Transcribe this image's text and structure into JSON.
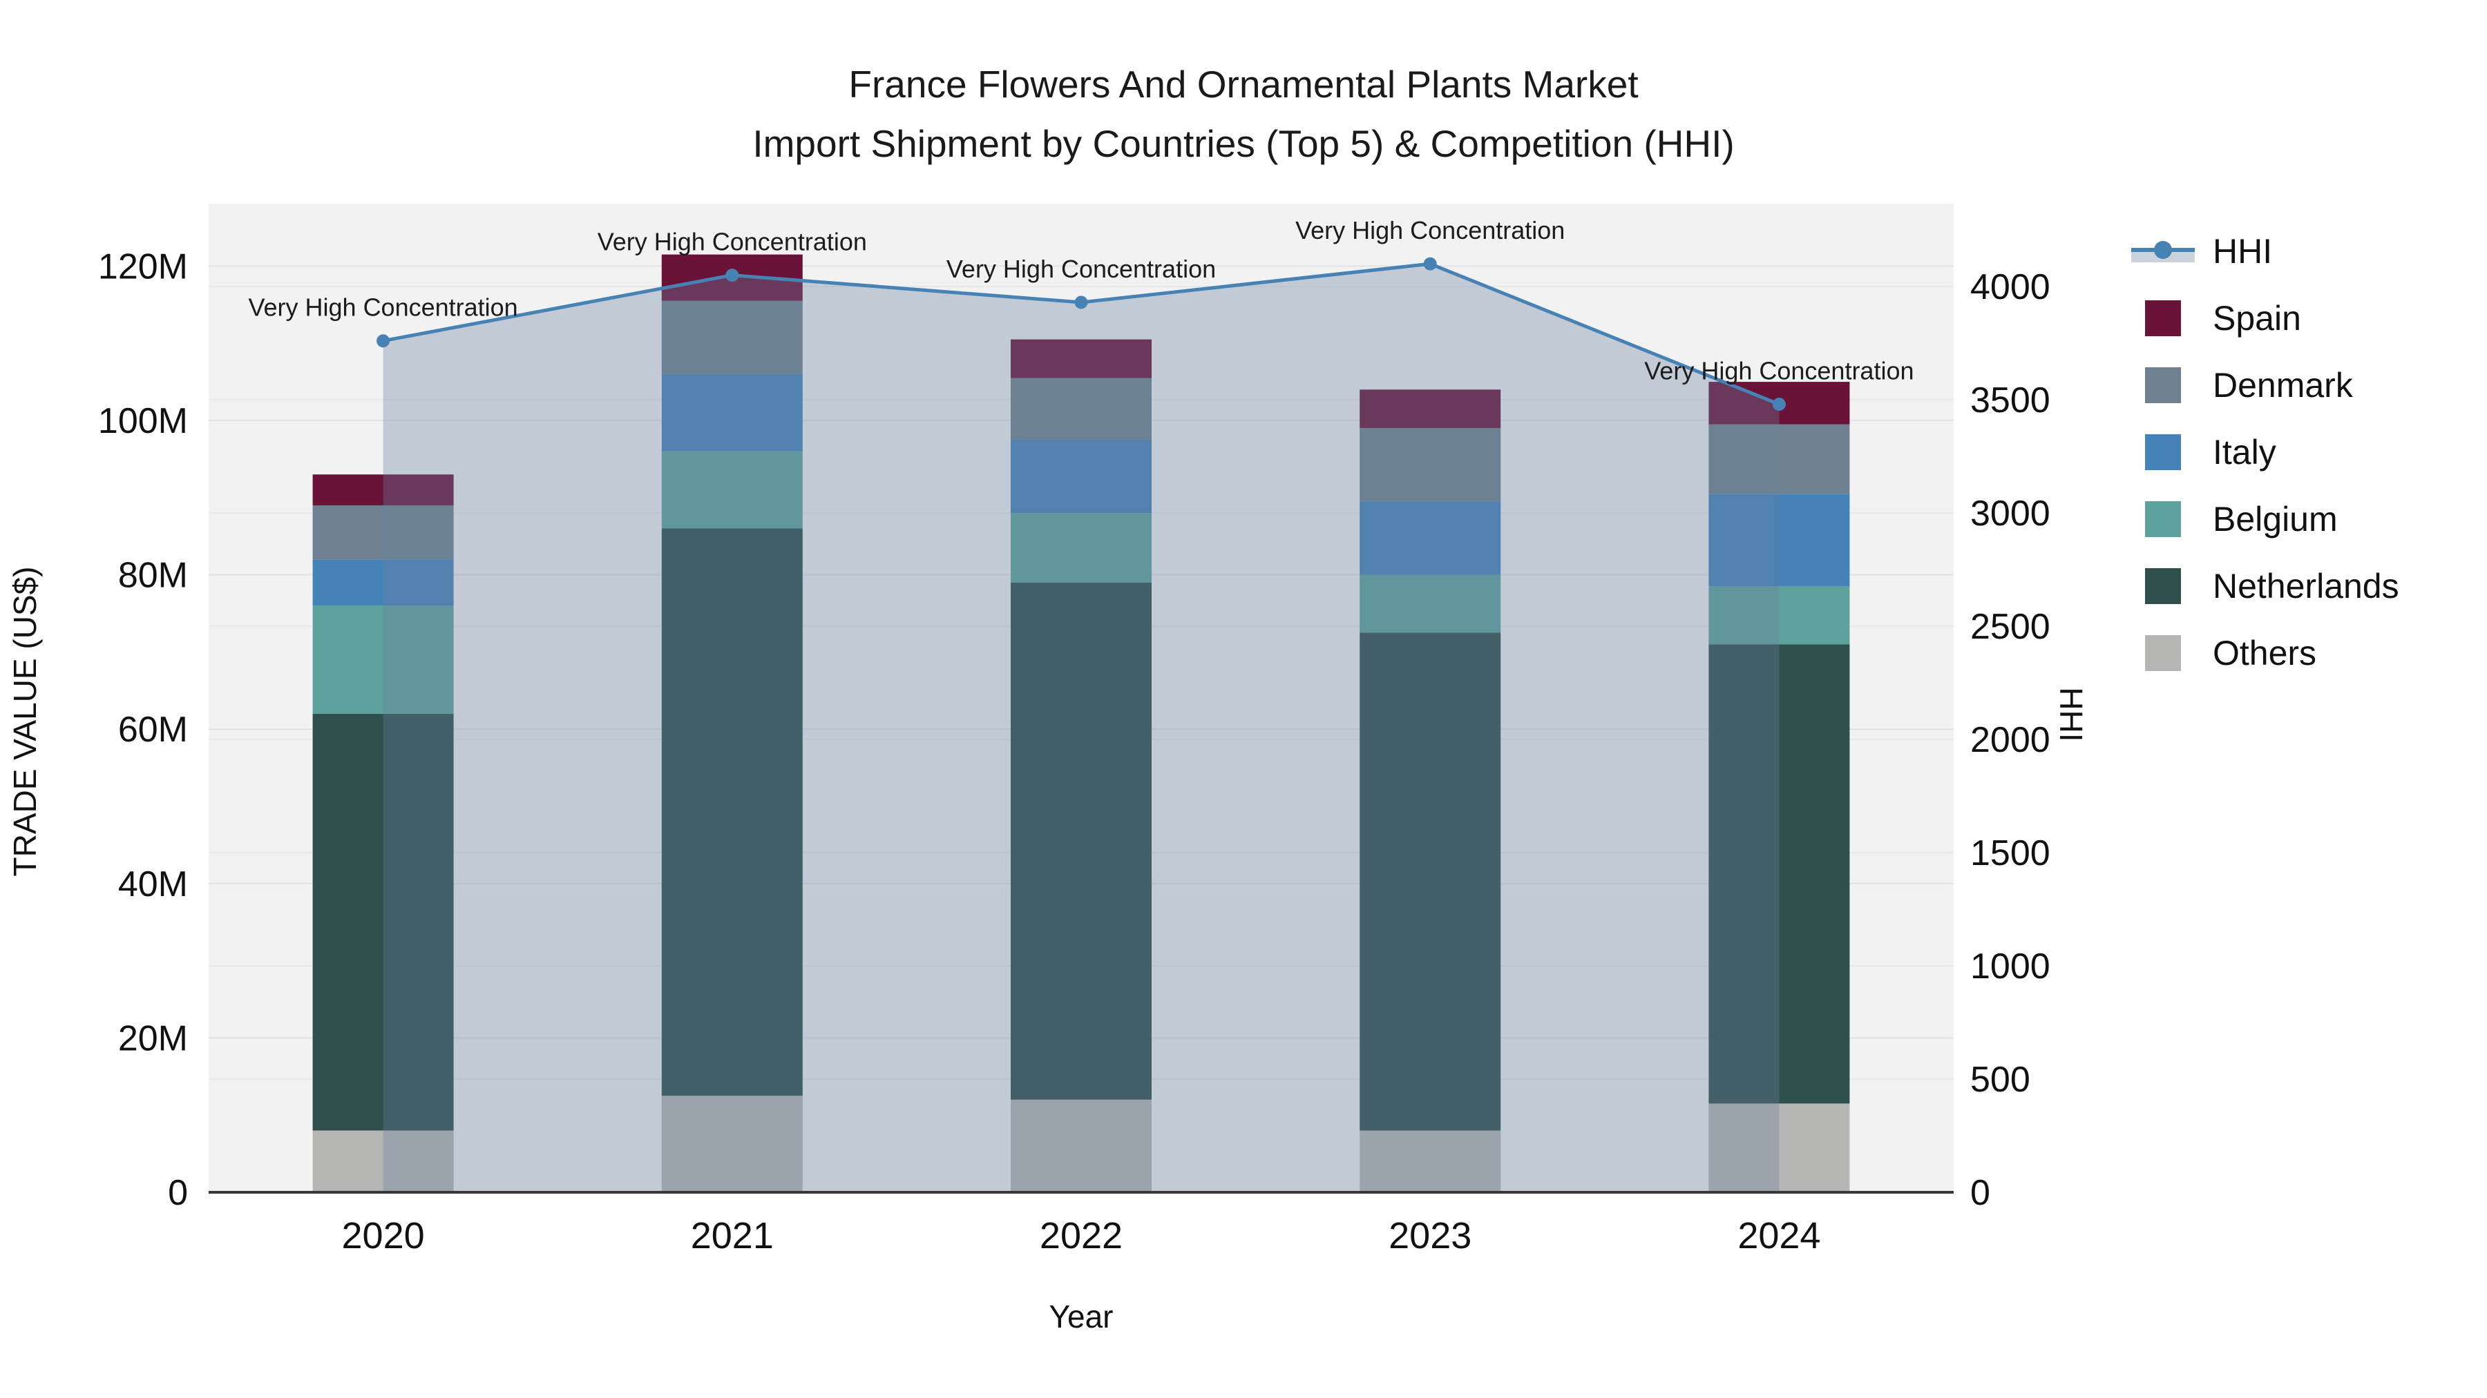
{
  "page": {
    "title_line1": "France Flowers And Ornamental Plants Market",
    "title_line2": "Import Shipment by Countries (Top 5) & Competition (HHI)"
  },
  "axes": {
    "x": {
      "title": "Year",
      "categories": [
        "2020",
        "2021",
        "2022",
        "2023",
        "2024"
      ]
    },
    "left": {
      "title": "TRADE VALUE (US$)",
      "tick_values": [
        0,
        20,
        40,
        60,
        80,
        100,
        120
      ],
      "tick_suffix": "M"
    },
    "right": {
      "title": "HHI",
      "tick_values": [
        0,
        500,
        1000,
        1500,
        2000,
        2500,
        3000,
        3500,
        4000
      ]
    }
  },
  "chart_data": {
    "type": "bar",
    "stacked": true,
    "title": "France Flowers And Ornamental Plants Market Import Shipment by Countries (Top 5) & Competition (HHI)",
    "categories": [
      "2020",
      "2021",
      "2022",
      "2023",
      "2024"
    ],
    "values_unit": "million US$",
    "xlabel": "Year",
    "ylabel_left": "TRADE VALUE (US$)",
    "ylabel_right": "HHI",
    "ylim_left": [
      0,
      128
    ],
    "ylim_right": [
      0,
      4370
    ],
    "grid": true,
    "legend_position": "right",
    "series": [
      {
        "name": "Others",
        "color": "#b5b5b4",
        "values": [
          8,
          12.5,
          12,
          8,
          11.5
        ]
      },
      {
        "name": "Netherlands",
        "color": "#2f4f4c",
        "values": [
          54,
          73.5,
          67,
          64.5,
          59.5
        ]
      },
      {
        "name": "Belgium",
        "color": "#5da19d",
        "values": [
          14,
          10,
          9,
          7.5,
          7.5
        ]
      },
      {
        "name": "Italy",
        "color": "#4482b8",
        "values": [
          6,
          10,
          9.5,
          9.5,
          12
        ]
      },
      {
        "name": "Denmark",
        "color": "#6f8191",
        "values": [
          7,
          9.5,
          8,
          9.5,
          9
        ]
      },
      {
        "name": "Spain",
        "color": "#6a1238",
        "values": [
          4,
          6,
          5,
          5,
          5.5
        ]
      }
    ],
    "line": {
      "name": "HHI",
      "axis": "right",
      "color": "#4682b4",
      "area_fill": "rgba(106,129,158,0.35)",
      "values": [
        3760,
        4050,
        3930,
        4100,
        3480
      ]
    },
    "point_annotations": [
      "Very High Concentration",
      "Very High Concentration",
      "Very High Concentration",
      "Very High Concentration",
      "Very High Concentration"
    ]
  },
  "legend": {
    "items": [
      {
        "label": "HHI",
        "type": "line",
        "color": "#4682b4"
      },
      {
        "label": "Spain",
        "type": "square",
        "color": "#6a1238"
      },
      {
        "label": "Denmark",
        "type": "square",
        "color": "#6f8191"
      },
      {
        "label": "Italy",
        "type": "square",
        "color": "#4482b8"
      },
      {
        "label": "Belgium",
        "type": "square",
        "color": "#5da19d"
      },
      {
        "label": "Netherlands",
        "type": "square",
        "color": "#2f4f4c"
      },
      {
        "label": "Others",
        "type": "square",
        "color": "#b5b5b4"
      }
    ]
  },
  "colors": {
    "plot_bg": "#f2f2f3",
    "grid_left": "#e2e3e7",
    "grid_right": "#e8e9ec",
    "axis_line": "#383838",
    "text": "#111111"
  }
}
